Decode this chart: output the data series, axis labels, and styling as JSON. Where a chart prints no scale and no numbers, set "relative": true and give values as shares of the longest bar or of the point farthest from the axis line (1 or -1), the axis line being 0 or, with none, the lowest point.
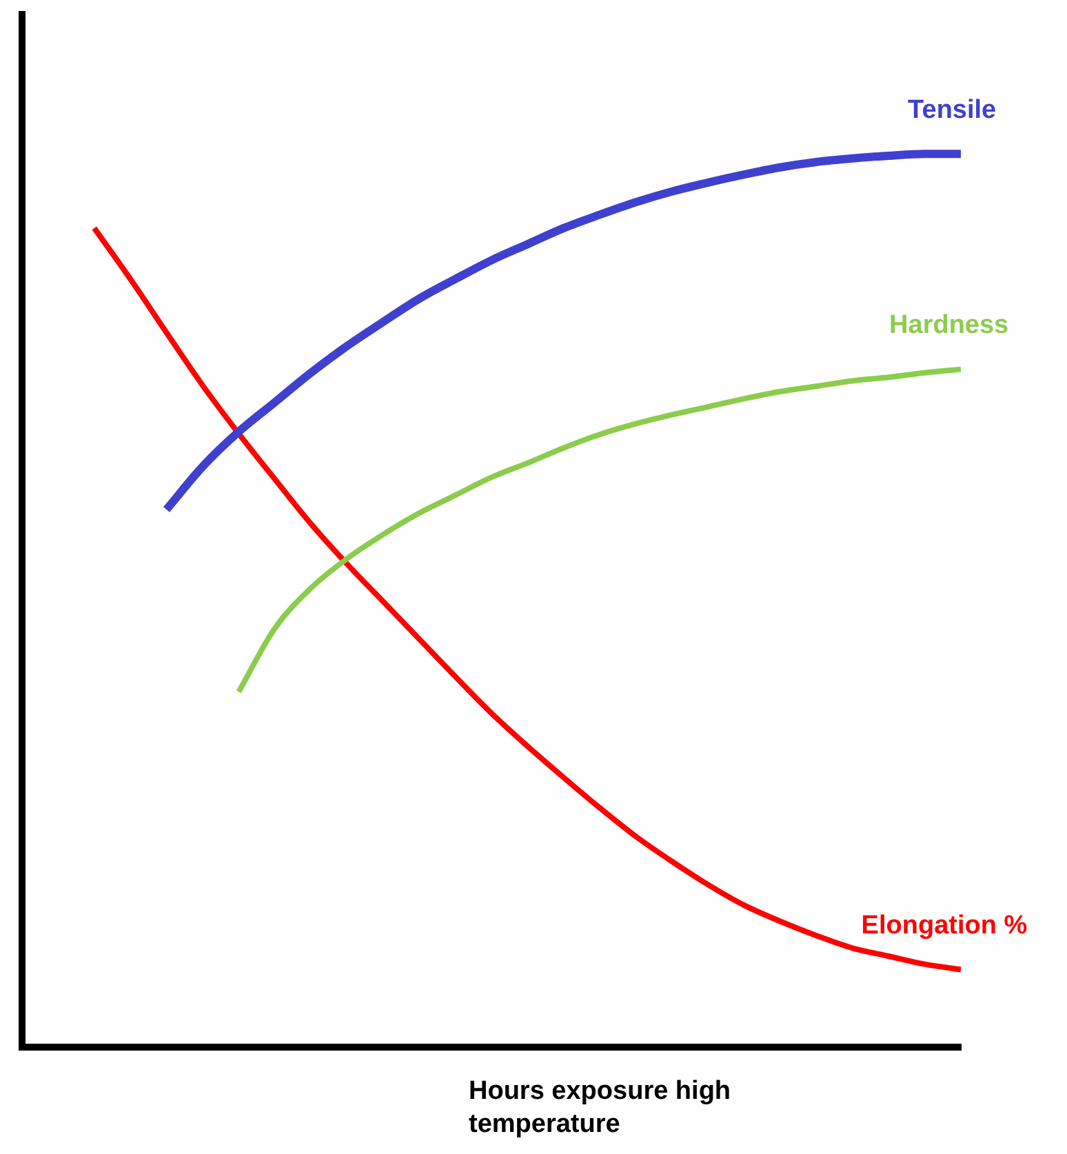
{
  "chart_data": {
    "type": "line",
    "relative": true,
    "xlabel": "Hours exposure high temperature",
    "legend": false,
    "grid": false,
    "marker": "none",
    "line_style": "solid",
    "categories": [
      null,
      null,
      null,
      null,
      null,
      null,
      null,
      null,
      null,
      null,
      null,
      null,
      null,
      null,
      null,
      null,
      null,
      null,
      null,
      null,
      null,
      null,
      null,
      null,
      null,
      null,
      null
    ],
    "series": [
      {
        "name": "Tensile",
        "color": "#4040d0",
        "values": [
          null,
          null,
          null,
          null,
          0.602,
          0.65,
          0.689,
          0.722,
          0.755,
          0.785,
          0.812,
          0.838,
          0.86,
          0.881,
          0.899,
          0.917,
          0.932,
          0.946,
          0.958,
          0.968,
          0.977,
          0.985,
          0.991,
          0.995,
          0.998,
          1,
          1
        ]
      },
      {
        "name": "Hardness",
        "color": "#8ccc4c",
        "values": [
          null,
          null,
          null,
          null,
          null,
          null,
          0.398,
          0.469,
          0.514,
          0.547,
          0.574,
          0.598,
          0.618,
          0.638,
          0.654,
          0.671,
          0.686,
          0.698,
          0.708,
          0.717,
          0.726,
          0.734,
          0.74,
          0.746,
          0.75,
          0.755,
          0.759
        ]
      },
      {
        "name": "Elongation %",
        "color": "#ff0000",
        "values": [
          null,
          null,
          0.917,
          0.86,
          0.8,
          0.741,
          0.687,
          0.636,
          0.586,
          0.541,
          0.499,
          0.457,
          0.415,
          0.374,
          0.337,
          0.302,
          0.268,
          0.236,
          0.208,
          0.182,
          0.159,
          0.141,
          0.125,
          0.111,
          0.102,
          0.093,
          0.087
        ]
      }
    ]
  }
}
